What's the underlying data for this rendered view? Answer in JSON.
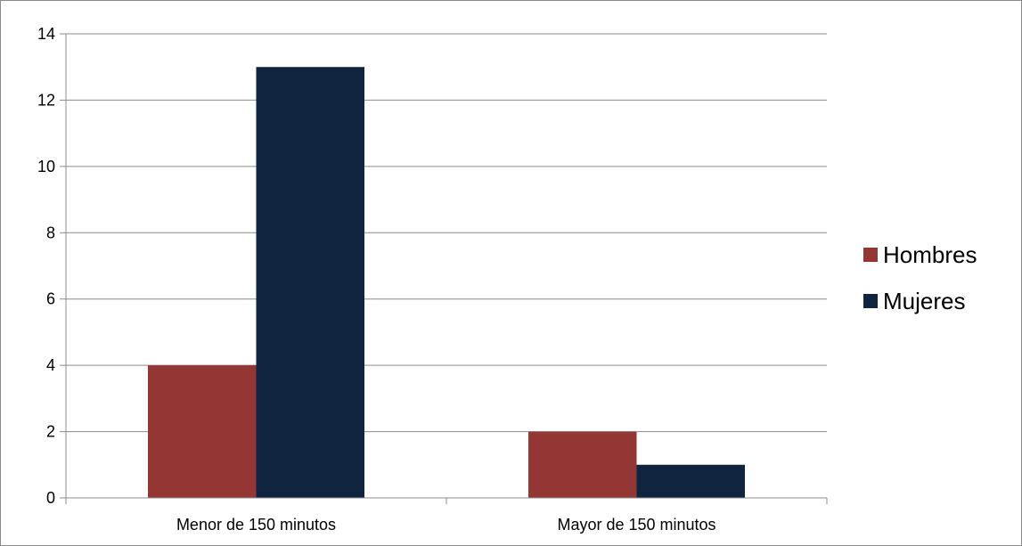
{
  "chart_data": {
    "type": "bar",
    "title": "",
    "xlabel": "",
    "ylabel": "",
    "categories": [
      "Menor de 150 minutos",
      "Mayor de 150 minutos"
    ],
    "series": [
      {
        "name": "Hombres",
        "values": [
          4,
          2
        ],
        "color": "#943634"
      },
      {
        "name": "Mujeres",
        "values": [
          13,
          1
        ],
        "color": "#10243f"
      }
    ],
    "ylim": [
      0,
      14
    ],
    "yticks": [
      0,
      2,
      4,
      6,
      8,
      10,
      12,
      14
    ],
    "grid": true,
    "legend_position": "right"
  }
}
